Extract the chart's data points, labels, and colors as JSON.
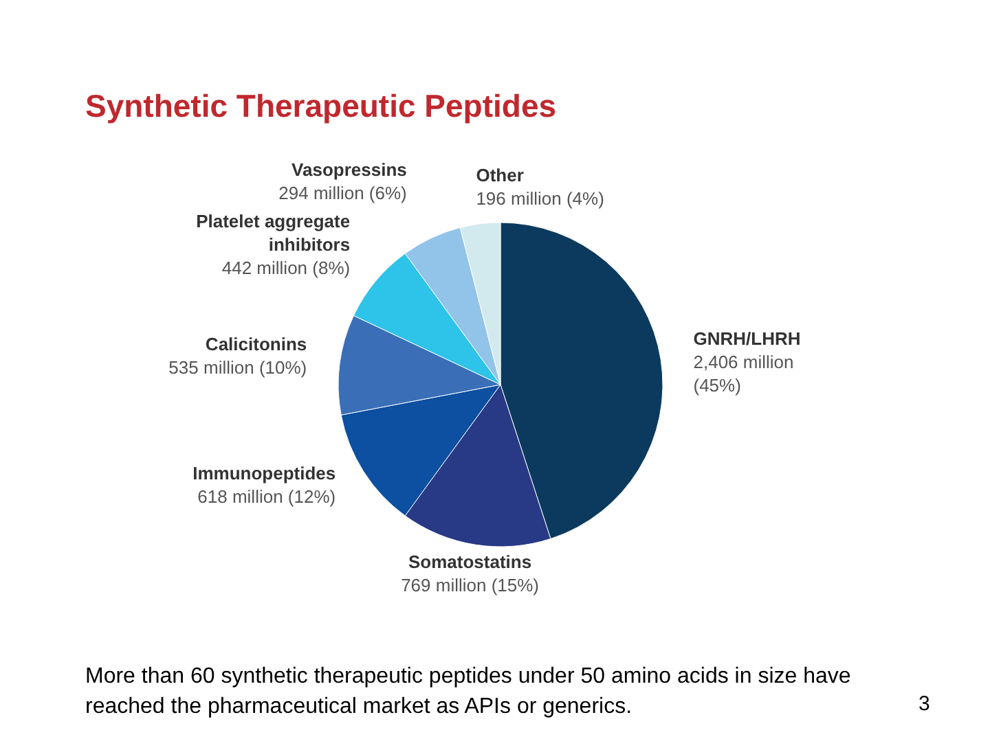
{
  "chart_data": {
    "type": "pie",
    "title": "Synthetic Therapeutic Peptides",
    "categories": [
      "GNRH/LHRH",
      "Somatostatins",
      "Immunopeptides",
      "Calicitonins",
      "Platelet aggregate inhibitors",
      "Vasopressins",
      "Other"
    ],
    "values": [
      45,
      15,
      12,
      10,
      8,
      6,
      4
    ],
    "value_labels": [
      "2,406 million (45%)",
      "769 million (15%)",
      "618 million (12%)",
      "535 million (10%)",
      "442 million (8%)",
      "294 million (6%)",
      "196 million (4%)"
    ],
    "colors": [
      "#0b3a5e",
      "#283a85",
      "#0d4fa0",
      "#3a6fb8",
      "#2ec3e8",
      "#92c3e8",
      "#d2eaee"
    ],
    "annotations": [
      "More than 60 synthetic therapeutic peptides under 50 amino acids in size have reached the pharmaceutical market as APIs or generics.",
      "3"
    ]
  }
}
